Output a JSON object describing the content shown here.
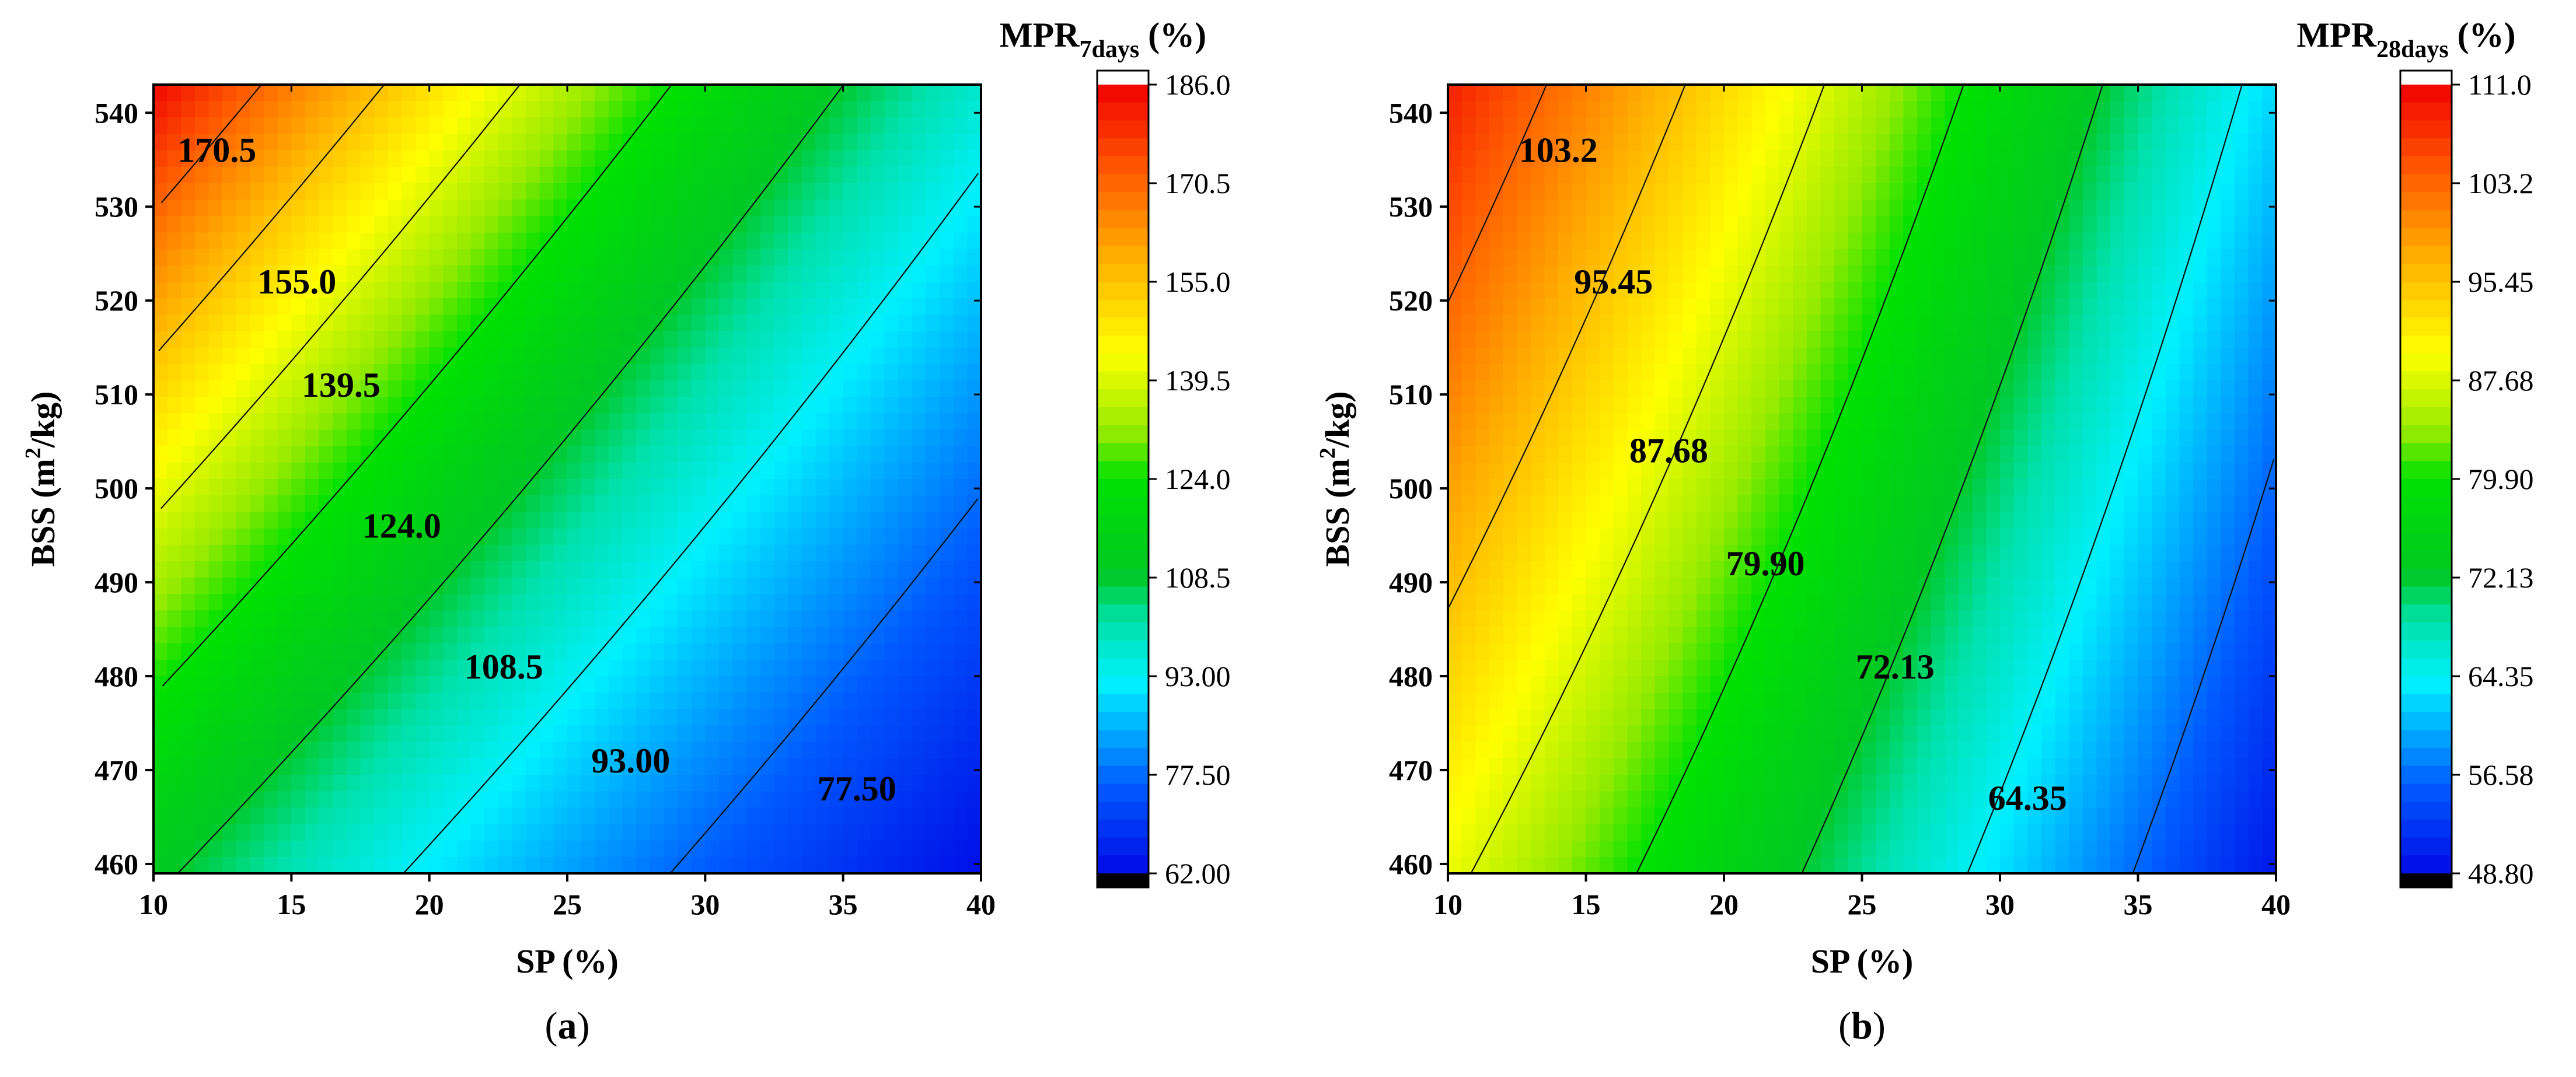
{
  "chart_data": [
    {
      "type": "contour",
      "panel_label": "a",
      "xlabel": "SP (%)",
      "ylabel_main": "BSS (m",
      "ylabel_sup": "2",
      "ylabel_end": "/kg)",
      "xlim": [
        10,
        40
      ],
      "ylim": [
        459,
        543
      ],
      "x_ticks": [
        "10",
        "15",
        "20",
        "25",
        "30",
        "35",
        "40"
      ],
      "y_ticks": [
        "460",
        "470",
        "480",
        "490",
        "500",
        "510",
        "520",
        "530",
        "540"
      ],
      "surface": {
        "model": "linear_log",
        "corner_values": {
          "x10_y540": 182,
          "x10_y460": 111,
          "x40_y540": 96,
          "x40_y460": 63
        }
      },
      "zlim": [
        62.0,
        186.0
      ],
      "contour_levels": [
        77.5,
        93.0,
        108.5,
        124.0,
        139.5,
        155.0,
        170.5
      ],
      "contour_labels": [
        {
          "text": "170.5",
          "x": 12.3,
          "y": 536
        },
        {
          "text": "155.0",
          "x": 15.2,
          "y": 522
        },
        {
          "text": "139.5",
          "x": 16.8,
          "y": 511
        },
        {
          "text": "124.0",
          "x": 19.0,
          "y": 496
        },
        {
          "text": "108.5",
          "x": 22.7,
          "y": 481
        },
        {
          "text": "93.00",
          "x": 27.3,
          "y": 471
        },
        {
          "text": "77.50",
          "x": 35.5,
          "y": 468
        }
      ],
      "colorbar": {
        "title_main": "MPR",
        "title_sub": "7days",
        "title_end": " (%)",
        "tick_labels": [
          "186.0",
          "170.5",
          "155.0",
          "139.5",
          "124.0",
          "108.5",
          "93.00",
          "77.50",
          "62.00"
        ]
      }
    },
    {
      "type": "contour",
      "panel_label": "b",
      "xlabel": "SP (%)",
      "ylabel_main": "BSS (m",
      "ylabel_sup": "2",
      "ylabel_end": "/kg)",
      "xlim": [
        10,
        40
      ],
      "ylim": [
        459,
        543
      ],
      "x_ticks": [
        "10",
        "15",
        "20",
        "25",
        "30",
        "35",
        "40"
      ],
      "y_ticks": [
        "460",
        "470",
        "480",
        "490",
        "500",
        "510",
        "520",
        "530",
        "540"
      ],
      "surface": {
        "model": "linear",
        "corner_values": {
          "x10_y540": 108,
          "x10_y460": 89,
          "x40_y540": 62,
          "x40_y460": 50
        }
      },
      "zlim": [
        48.8,
        111.0
      ],
      "contour_levels": [
        56.58,
        64.35,
        72.13,
        79.9,
        87.68,
        95.45,
        103.2
      ],
      "contour_labels": [
        {
          "text": "103.2",
          "x": 14.0,
          "y": 536
        },
        {
          "text": "95.45",
          "x": 16.0,
          "y": 522
        },
        {
          "text": "87.68",
          "x": 18.0,
          "y": 504
        },
        {
          "text": "79.90",
          "x": 21.5,
          "y": 492
        },
        {
          "text": "72.13",
          "x": 26.2,
          "y": 481
        },
        {
          "text": "64.35",
          "x": 31.0,
          "y": 467
        }
      ],
      "colorbar": {
        "title_main": "MPR",
        "title_sub": "28days",
        "title_end": " (%)",
        "tick_labels": [
          "111.0",
          "103.2",
          "95.45",
          "87.68",
          "79.90",
          "72.13",
          "64.35",
          "56.58",
          "48.80"
        ]
      }
    }
  ]
}
